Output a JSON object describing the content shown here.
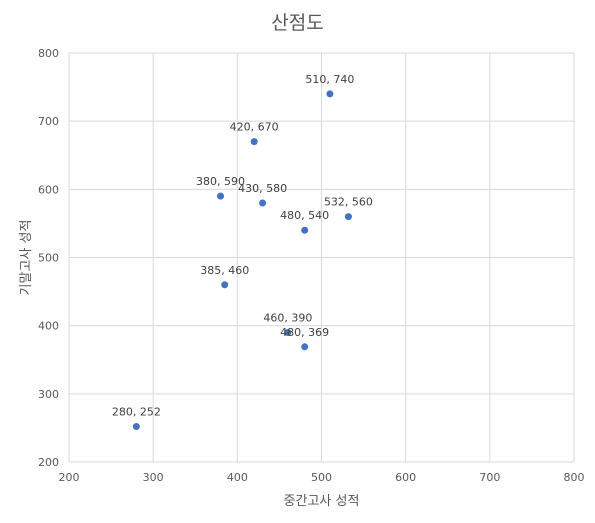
{
  "chart_data": {
    "type": "scatter",
    "title": "산점도",
    "xlabel": "중간고사 성적",
    "ylabel": "기말고사 성적",
    "xlim": [
      200,
      800
    ],
    "ylim": [
      200,
      800
    ],
    "xticks": [
      200,
      300,
      400,
      500,
      600,
      700,
      800
    ],
    "yticks": [
      200,
      300,
      400,
      500,
      600,
      700,
      800
    ],
    "grid": true,
    "point_color": "#4472c4",
    "series": [
      {
        "name": "성적",
        "points": [
          {
            "x": 510,
            "y": 740,
            "label": "510, 740"
          },
          {
            "x": 420,
            "y": 670,
            "label": "420, 670"
          },
          {
            "x": 380,
            "y": 590,
            "label": "380, 590"
          },
          {
            "x": 430,
            "y": 580,
            "label": "430, 580"
          },
          {
            "x": 480,
            "y": 540,
            "label": "480, 540"
          },
          {
            "x": 532,
            "y": 560,
            "label": "532, 560"
          },
          {
            "x": 385,
            "y": 460,
            "label": "385, 460"
          },
          {
            "x": 460,
            "y": 390,
            "label": "460, 390"
          },
          {
            "x": 480,
            "y": 369,
            "label": "480, 369"
          },
          {
            "x": 280,
            "y": 252,
            "label": "280, 252"
          }
        ]
      }
    ]
  }
}
